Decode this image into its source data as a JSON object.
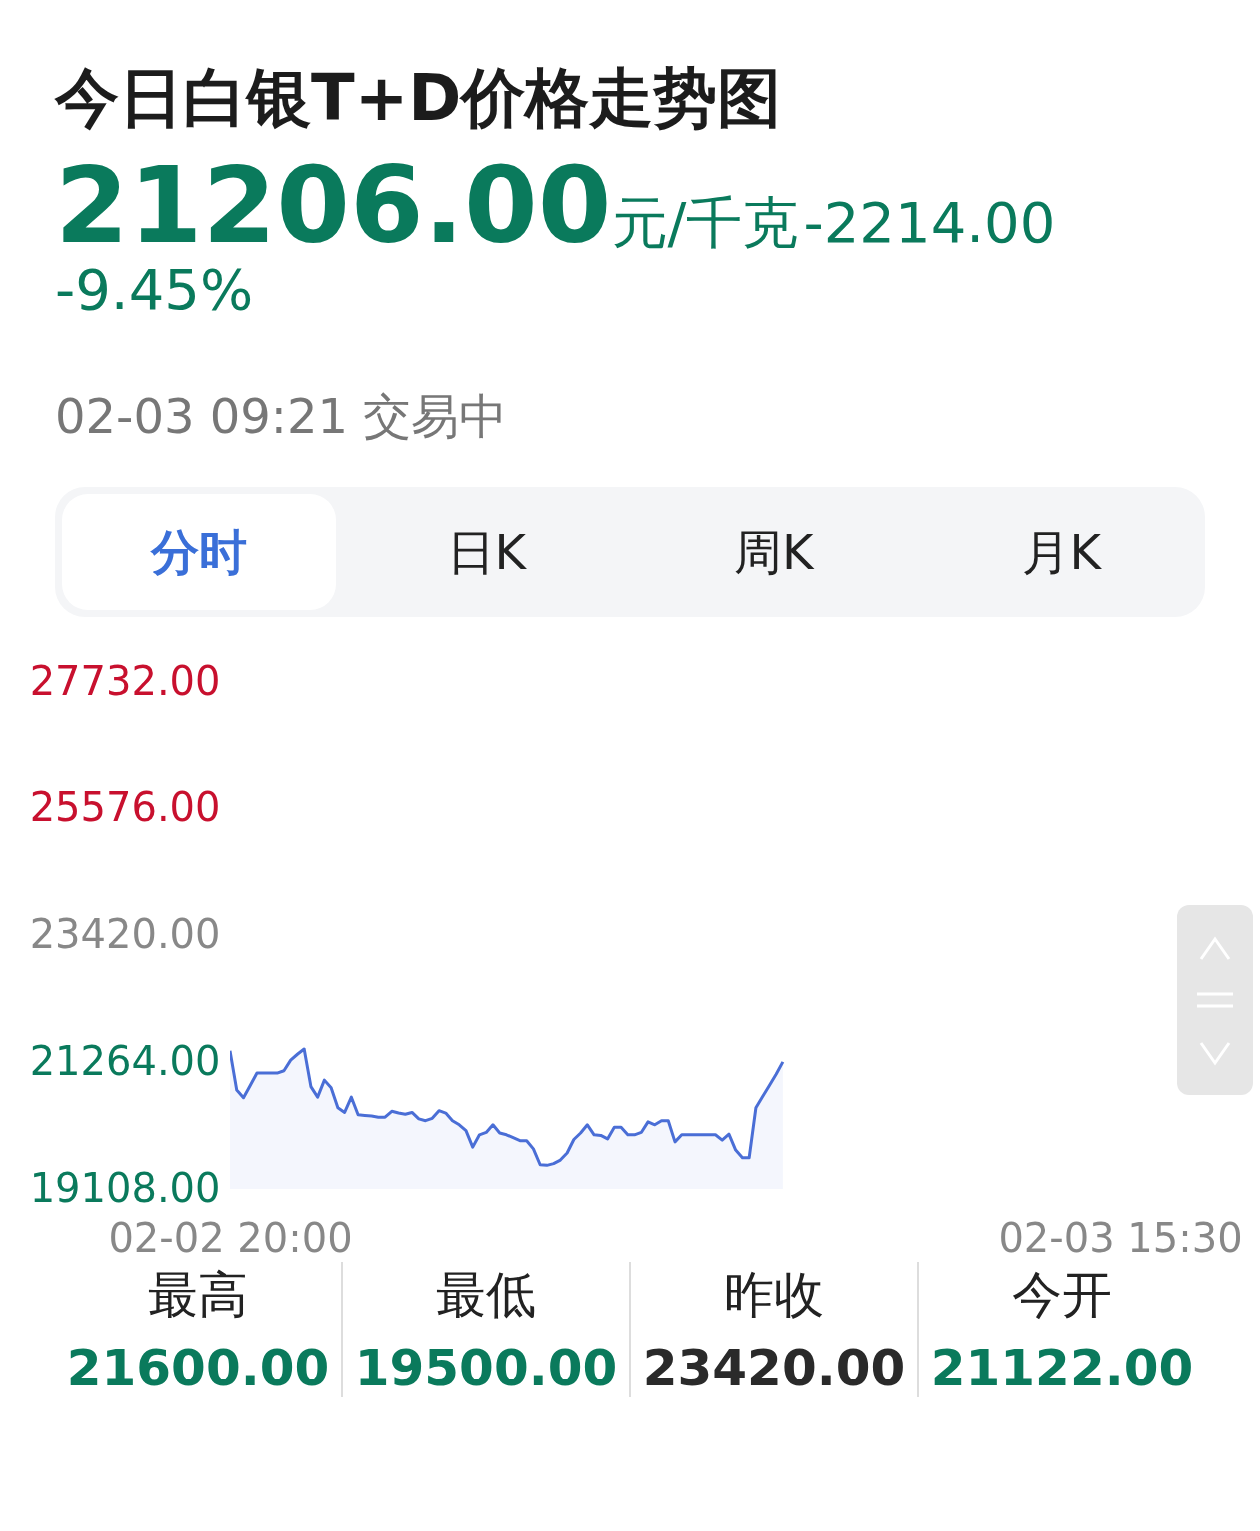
{
  "chart_data": {
    "type": "area",
    "title": "今日白银T+D价格走势图",
    "annotations": [
      "21206.00",
      "元/千克",
      "-2214.00",
      "-9.45%",
      "02-03 09:21 交易中",
      "分时",
      "日K",
      "周K",
      "月K",
      "最高",
      "21600.00",
      "最低",
      "19500.00",
      "昨收",
      "23420.00",
      "今开",
      "21122.00"
    ],
    "categories": [
      "02-02 20:00",
      null,
      null,
      null,
      null,
      null,
      null,
      null,
      null,
      null,
      null,
      null,
      null,
      null,
      null,
      null,
      null,
      null,
      null,
      null,
      null,
      null,
      null,
      null,
      null,
      null,
      null,
      null,
      null,
      null,
      null,
      null,
      null,
      null,
      null,
      null,
      null,
      null,
      null,
      null,
      null,
      null,
      null,
      null,
      null,
      null,
      null,
      null,
      null,
      null,
      null,
      null,
      null,
      null,
      null,
      null,
      null,
      null,
      null,
      null,
      null,
      null,
      null,
      null,
      null,
      null,
      null,
      null,
      null,
      null,
      null,
      null,
      null,
      null,
      null,
      null,
      null,
      null,
      null,
      null,
      null,
      null,
      null,
      null,
      null,
      null,
      null,
      null,
      null,
      null,
      null,
      null,
      null,
      null,
      null,
      null,
      null,
      null,
      null,
      null,
      null,
      null,
      null,
      null,
      null,
      null,
      null,
      null,
      null,
      null,
      null,
      null,
      null,
      null,
      null,
      null,
      null,
      null,
      null,
      null,
      null,
      null,
      null,
      null,
      null,
      null,
      null,
      null,
      null,
      null,
      null,
      null,
      "02-03 15:30"
    ],
    "series": [
      {
        "color": "#4a6ed6",
        "values": [
          21460,
          20790,
          20660,
          20870,
          21080,
          21080,
          21080,
          21080,
          21120,
          21300,
          21400,
          21490,
          20850,
          20670,
          20960,
          20830,
          20490,
          20410,
          20670,
          20370,
          20360,
          20350,
          20330,
          20330,
          20430,
          20400,
          20380,
          20410,
          20300,
          20270,
          20310,
          20440,
          20400,
          20270,
          20200,
          20100,
          19820,
          20030,
          20070,
          20200,
          20060,
          20030,
          19980,
          19930,
          19930,
          19790,
          19520,
          19510,
          19540,
          19600,
          19720,
          19950,
          20060,
          20200,
          20030,
          20020,
          19960,
          20160,
          20160,
          20030,
          20030,
          20070,
          20250,
          20200,
          20270,
          20270,
          19910,
          20030,
          20030,
          20030,
          20030,
          20030,
          20030,
          19940,
          20040,
          19770,
          19640,
          19640,
          20490,
          20680,
          20870,
          21060,
          21270,
          null,
          null,
          null,
          null,
          null,
          null,
          null,
          null,
          null,
          null,
          null,
          null,
          null,
          null,
          null,
          null,
          null,
          null,
          null,
          null,
          null,
          null,
          null,
          null,
          null,
          null,
          null,
          null,
          null,
          null,
          null,
          null,
          null,
          null,
          null,
          null,
          null,
          null,
          null,
          null,
          null,
          null,
          null,
          null,
          null,
          null,
          null,
          null,
          null,
          null
        ]
      }
    ],
    "ylim": [
      19108,
      27732
    ],
    "yticks": [
      {
        "value": 19108,
        "label": "19108.00"
      },
      {
        "value": 21264,
        "label": "21264.00"
      },
      {
        "value": 23420,
        "label": "23420.00"
      },
      {
        "value": 25576,
        "label": "25576.00"
      },
      {
        "value": 27732,
        "label": "27732.00"
      }
    ]
  }
}
